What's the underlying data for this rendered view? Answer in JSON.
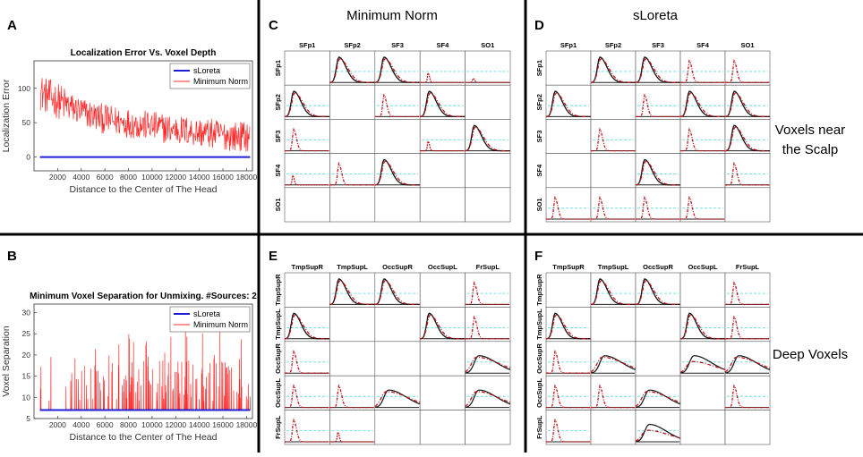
{
  "panel_letters": [
    "A",
    "B",
    "C",
    "D",
    "E",
    "F"
  ],
  "column_headers": {
    "minimum_norm": "Minimum Norm",
    "sloreta": "sLoreta"
  },
  "side_labels": {
    "scalp_line1": "Voxels near",
    "scalp_line2": "the Scalp",
    "deep": "Deep Voxels"
  },
  "colors": {
    "sloreta": "#1f1fd6",
    "minnorm": "#ff2a2a",
    "black": "#111111",
    "dashdot": "#c0151a",
    "dashed": "#66dddd",
    "divider": "#000000",
    "axis_bg": "#ffffff"
  },
  "chart_data": [
    {
      "id": "A",
      "type": "line",
      "title": "Localization Error Vs. Voxel Depth",
      "xlabel": "Distance to the Center of The Head",
      "ylabel": "Localization Error",
      "xlim": [
        0,
        18500
      ],
      "ylim": [
        -20,
        140
      ],
      "xticks": [
        2000,
        4000,
        6000,
        8000,
        10000,
        12000,
        14000,
        16000,
        18000
      ],
      "yticks": [
        0,
        50,
        100
      ],
      "legend": [
        "sLoreta",
        "Minimum Norm"
      ],
      "legend_position": "top-right",
      "series": [
        {
          "name": "sLoreta",
          "x": [
            500,
            18300
          ],
          "y": [
            0,
            0
          ]
        },
        {
          "name": "Minimum Norm",
          "x": [
            500,
            1000,
            2000,
            3000,
            4000,
            5000,
            6000,
            7000,
            8000,
            9000,
            10000,
            11000,
            12000,
            13000,
            14000,
            15000,
            16000,
            17000,
            18300
          ],
          "y": [
            95,
            90,
            82,
            73,
            66,
            60,
            55,
            52,
            50,
            47,
            45,
            42,
            40,
            38,
            36,
            34,
            32,
            30,
            30
          ],
          "noise_amplitude": 22
        }
      ]
    },
    {
      "id": "B",
      "type": "line",
      "title": "Minimum Voxel Separation for Unmixing. #Sources: 2",
      "xlabel": "Distance to the Center of The Head",
      "ylabel": "Voxel Separation",
      "xlim": [
        0,
        18500
      ],
      "ylim": [
        5,
        32
      ],
      "xticks": [
        2000,
        4000,
        6000,
        8000,
        10000,
        12000,
        14000,
        16000,
        18000
      ],
      "yticks": [
        5,
        10,
        15,
        20,
        25,
        30
      ],
      "legend": [
        "sLoreta",
        "Minimum Norm"
      ],
      "legend_position": "top-right",
      "series": [
        {
          "name": "sLoreta",
          "x": [
            500,
            18300
          ],
          "y": [
            7,
            7
          ]
        },
        {
          "name": "Minimum Norm",
          "baseline": 7,
          "spike_min": 9,
          "spike_max": 27,
          "note": "sparse spikes above baseline 7"
        }
      ]
    },
    {
      "id": "C",
      "type": "line-grid",
      "method": "Minimum Norm",
      "sources": [
        "SFp1",
        "SFp2",
        "SF3",
        "SF4",
        "SO1"
      ],
      "cells": [
        [
          "E",
          "bd",
          "bd",
          "s",
          "t"
        ],
        [
          "bd",
          "E",
          "d",
          "bd",
          "E"
        ],
        [
          "d",
          "E",
          "E",
          "s",
          "b"
        ],
        [
          "s",
          "d",
          "b",
          "E",
          "E"
        ],
        [
          "E",
          "E",
          "E",
          "E",
          "E"
        ]
      ]
    },
    {
      "id": "D",
      "type": "line-grid",
      "method": "sLoreta",
      "sources": [
        "SFp1",
        "SFp2",
        "SF3",
        "SF4",
        "SO1"
      ],
      "cells": [
        [
          "E",
          "b",
          "b",
          "d",
          "d"
        ],
        [
          "b",
          "E",
          "d",
          "b",
          "b"
        ],
        [
          "E",
          "d",
          "E",
          "d",
          "b"
        ],
        [
          "E",
          "E",
          "b",
          "E",
          "d"
        ],
        [
          "d",
          "d",
          "d",
          "d",
          "E"
        ]
      ]
    },
    {
      "id": "E",
      "type": "line-grid",
      "method": "Minimum Norm",
      "sources": [
        "TmpSupR",
        "TmpSupL",
        "OccSupR",
        "OccSupL",
        "FrSupL"
      ],
      "cells": [
        [
          "E",
          "bd",
          "b",
          "E",
          "d"
        ],
        [
          "bd",
          "E",
          "E",
          "b",
          "d"
        ],
        [
          "d",
          "E",
          "E",
          "E",
          "w"
        ],
        [
          "d",
          "d",
          "w",
          "E",
          "w"
        ],
        [
          "d",
          "s",
          "E",
          "E",
          "E"
        ]
      ]
    },
    {
      "id": "F",
      "type": "line-grid",
      "method": "sLoreta",
      "sources": [
        "TmpSupR",
        "TmpSupL",
        "OccSupR",
        "OccSupL",
        "FrSupL"
      ],
      "cells": [
        [
          "E",
          "b",
          "b",
          "E",
          "d"
        ],
        [
          "b",
          "E",
          "E",
          "b",
          "d"
        ],
        [
          "d",
          "w",
          "E",
          "f",
          "w"
        ],
        [
          "d",
          "d",
          "w",
          "E",
          "d"
        ],
        [
          "d",
          "E",
          "f",
          "E",
          "E"
        ]
      ]
    }
  ]
}
